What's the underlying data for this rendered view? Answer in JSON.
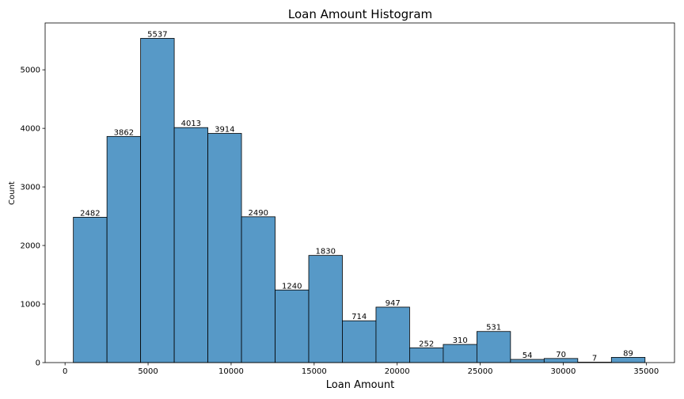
{
  "chart_data": {
    "type": "bar",
    "title": "Loan Amount Histogram",
    "xlabel": "Loan Amount",
    "ylabel": "Count",
    "bin_edges": [
      500,
      2525,
      4550,
      6575,
      8600,
      10625,
      12650,
      14675,
      16700,
      18725,
      20750,
      22775,
      24800,
      26825,
      28850,
      30875,
      32900,
      34925
    ],
    "values": [
      2482,
      3862,
      5537,
      4013,
      3914,
      2490,
      1240,
      1830,
      714,
      947,
      252,
      310,
      531,
      54,
      70,
      7,
      89
    ],
    "xlim": [
      -1200,
      36700
    ],
    "ylim": [
      0,
      5800
    ],
    "xticks": [
      0,
      5000,
      10000,
      15000,
      20000,
      25000,
      30000,
      35000
    ],
    "yticks": [
      0,
      1000,
      2000,
      3000,
      4000,
      5000
    ],
    "bar_color": "#5799c7",
    "grid": false,
    "legend": "none"
  }
}
